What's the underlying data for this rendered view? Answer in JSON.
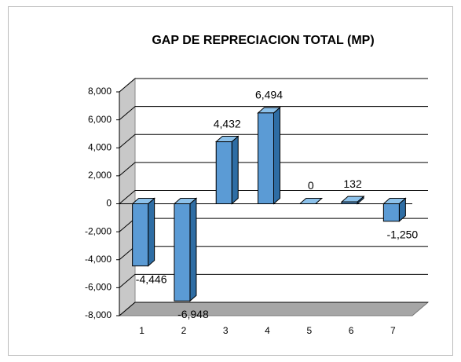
{
  "chart_data": {
    "type": "bar3d",
    "title": "GAP DE REPRECIACION TOTAL (MP)",
    "categories": [
      "1",
      "2",
      "3",
      "4",
      "5",
      "6",
      "7"
    ],
    "values": [
      -4446,
      -6948,
      4432,
      6494,
      0,
      132,
      -1250
    ],
    "value_labels": [
      "-4,446",
      "-6,948",
      "4,432",
      "6,494",
      "0",
      "132",
      "-1,250"
    ],
    "color": "#5b9bd5",
    "ylim": [
      -8000,
      8000
    ],
    "yticks": [
      {
        "value": -8000,
        "label": "-8,000"
      },
      {
        "value": -6000,
        "label": "-6,000"
      },
      {
        "value": -4000,
        "label": "-4,000"
      },
      {
        "value": -2000,
        "label": "-2,000"
      },
      0,
      {
        "value": 2000,
        "label": "2,000"
      },
      {
        "value": 4000,
        "label": "4,000"
      },
      {
        "value": 6000,
        "label": "6,000"
      },
      {
        "value": 8000,
        "label": "8,000"
      }
    ],
    "grid": true
  }
}
